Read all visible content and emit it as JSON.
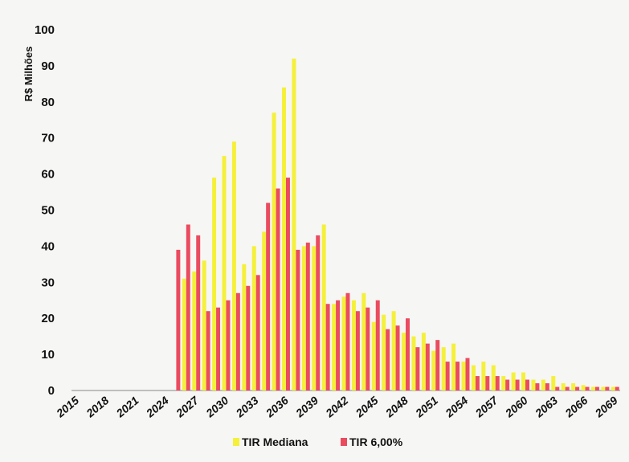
{
  "chart_data": {
    "type": "bar",
    "title": "",
    "xlabel": "",
    "ylabel": "R$ Milhões",
    "ylim": [
      0,
      100
    ],
    "yticks": [
      0,
      10,
      20,
      30,
      40,
      50,
      60,
      70,
      80,
      90,
      100
    ],
    "x_start": 2015,
    "x_end": 2070,
    "xtick_labels": [
      "2015",
      "2018",
      "2021",
      "2024",
      "2027",
      "2030",
      "2033",
      "2036",
      "2039",
      "2042",
      "2045",
      "2048",
      "2051",
      "2054",
      "2057",
      "2060",
      "2063",
      "2066",
      "2069"
    ],
    "grid": false,
    "legend_position": "bottom",
    "series": [
      {
        "name": "TIR Mediana",
        "color": "#f5f03a",
        "values": [
          0,
          0,
          0,
          0,
          0,
          0,
          0,
          0,
          0,
          0,
          0,
          31,
          33,
          36,
          59,
          65,
          69,
          35,
          40,
          44,
          77,
          84,
          92,
          40,
          40,
          46,
          24,
          26,
          25,
          27,
          19,
          21,
          22,
          16,
          15,
          16,
          11,
          12,
          13,
          8,
          7,
          8,
          7,
          4,
          5,
          5,
          3,
          3,
          4,
          2,
          2,
          1.5,
          1,
          1,
          1
        ]
      },
      {
        "name": "TIR 6,00%",
        "color": "#ea4b5f",
        "values": [
          0,
          0,
          0,
          0,
          0,
          0,
          0,
          0,
          0,
          0,
          39,
          46,
          43,
          22,
          23,
          25,
          27,
          29,
          32,
          52,
          56,
          59,
          39,
          41,
          43,
          24,
          25,
          27,
          22,
          23,
          25,
          17,
          18,
          20,
          12,
          13,
          14,
          8,
          8,
          9,
          4,
          4,
          4,
          3,
          3,
          3,
          2,
          2,
          1,
          1,
          1,
          1,
          1,
          1,
          1
        ]
      }
    ]
  }
}
